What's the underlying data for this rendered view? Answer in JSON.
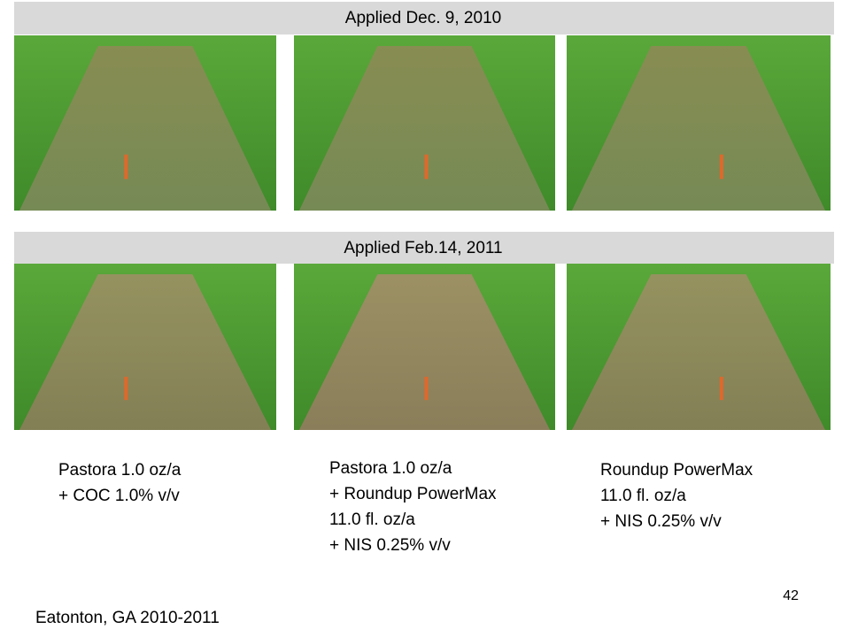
{
  "banners": [
    "Applied Dec. 9, 2010",
    "Applied Feb.14, 2011"
  ],
  "treatments": [
    {
      "lines": [
        "Pastora 1.0 oz/a",
        "+ COC 1.0% v/v"
      ]
    },
    {
      "lines": [
        "Pastora 1.0 oz/a",
        "+ Roundup PowerMax",
        "11.0 fl. oz/a",
        "+ NIS 0.25% v/v"
      ]
    },
    {
      "lines": [
        "Roundup PowerMax",
        "11.0 fl. oz/a",
        "+ NIS 0.25% v/v"
      ]
    }
  ],
  "page_number": "42",
  "location": "Eatonton, GA 2010-2011"
}
